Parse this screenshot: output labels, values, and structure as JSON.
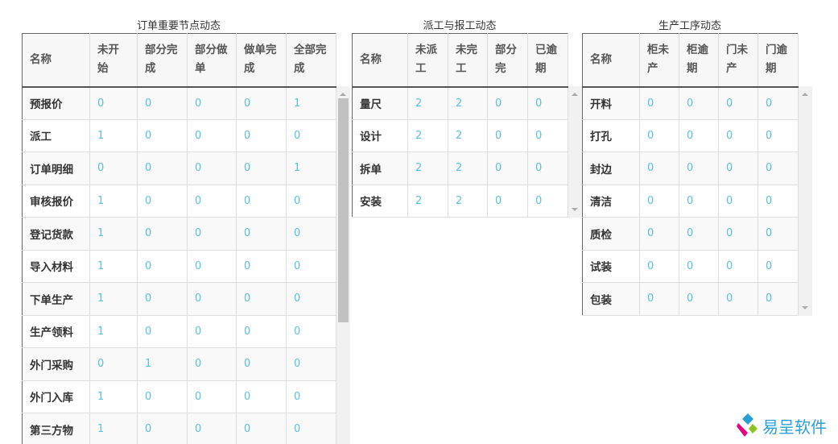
{
  "tables": [
    {
      "title": "订单重要节点动态",
      "headers": [
        "名称",
        "未开始",
        "部分完成",
        "部分做单",
        "做单完成",
        "全部完成"
      ],
      "rows": [
        [
          "预报价",
          "0",
          "0",
          "0",
          "0",
          "1"
        ],
        [
          "派工",
          "1",
          "0",
          "0",
          "0",
          "0"
        ],
        [
          "订单明细",
          "0",
          "0",
          "0",
          "0",
          "1"
        ],
        [
          "审核报价",
          "1",
          "0",
          "0",
          "0",
          "0"
        ],
        [
          "登记货款",
          "1",
          "0",
          "0",
          "0",
          "0"
        ],
        [
          "导入材料",
          "1",
          "0",
          "0",
          "0",
          "0"
        ],
        [
          "下单生产",
          "1",
          "0",
          "0",
          "0",
          "0"
        ],
        [
          "生产领料",
          "1",
          "0",
          "0",
          "0",
          "0"
        ],
        [
          "外门采购",
          "0",
          "1",
          "0",
          "0",
          "0"
        ],
        [
          "外门入库",
          "1",
          "0",
          "0",
          "0",
          "0"
        ],
        [
          "第三方物",
          "1",
          "0",
          "0",
          "0",
          "0"
        ]
      ]
    },
    {
      "title": "派工与报工动态",
      "headers": [
        "名称",
        "未派工",
        "未完工",
        "部分完",
        "已逾期"
      ],
      "rows": [
        [
          "量尺",
          "2",
          "2",
          "0",
          "0"
        ],
        [
          "设计",
          "2",
          "2",
          "0",
          "0"
        ],
        [
          "拆单",
          "2",
          "2",
          "0",
          "0"
        ],
        [
          "安装",
          "2",
          "2",
          "0",
          "0"
        ]
      ]
    },
    {
      "title": "生产工序动态",
      "headers": [
        "名称",
        "柜未产",
        "柜逾期",
        "门未产",
        "门逾期"
      ],
      "rows": [
        [
          "开料",
          "0",
          "0",
          "0",
          "0"
        ],
        [
          "打孔",
          "0",
          "0",
          "0",
          "0"
        ],
        [
          "封边",
          "0",
          "0",
          "0",
          "0"
        ],
        [
          "清洁",
          "0",
          "0",
          "0",
          "0"
        ],
        [
          "质检",
          "0",
          "0",
          "0",
          "0"
        ],
        [
          "试装",
          "0",
          "0",
          "0",
          "0"
        ],
        [
          "包装",
          "0",
          "0",
          "0",
          "0"
        ]
      ]
    }
  ],
  "logo": {
    "text": "易呈软件"
  },
  "colors": {
    "value": "#5bc0de",
    "accent": "#2a9fd6"
  }
}
